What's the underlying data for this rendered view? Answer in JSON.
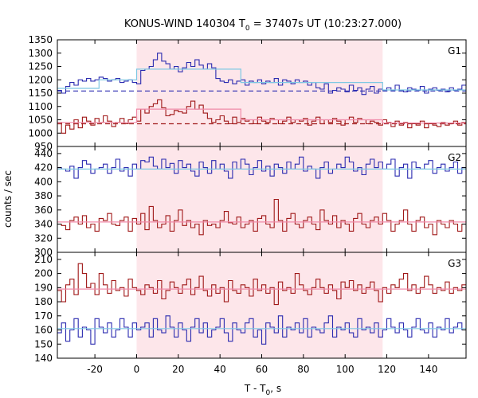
{
  "chart_data": {
    "type": "line",
    "title": "KONUS-WIND 140304 T",
    "title_sub": "0",
    "title_rest": " = 37407s UT (10:23:27.000)",
    "xlabel": "T - T",
    "xlabel_sub": "0",
    "xlabel_rest": ", s",
    "ylabel": "counts / sec",
    "xlim": [
      -38,
      158
    ],
    "xticks": [
      -20,
      0,
      20,
      40,
      60,
      80,
      100,
      120,
      140
    ],
    "highlight_interval": [
      0,
      118
    ],
    "colors": {
      "blue": "#2b2bb0",
      "red": "#a01818",
      "cyan": "#7ec8e3",
      "pink": "#f08aa8",
      "shade": "#fde6ea"
    },
    "panels": [
      {
        "label": "G1",
        "ylim": [
          950,
          1350
        ],
        "yticks": [
          950,
          1000,
          1050,
          1100,
          1150,
          1200,
          1250,
          1300,
          1350
        ],
        "series": [
          {
            "color": "blue",
            "x0": -38,
            "dx": 2,
            "values": [
              1160,
              1150,
              1175,
              1190,
              1180,
              1200,
              1195,
              1205,
              1195,
              1200,
              1210,
              1205,
              1195,
              1200,
              1205,
              1190,
              1195,
              1200,
              1190,
              1185,
              1235,
              1240,
              1250,
              1275,
              1300,
              1270,
              1260,
              1240,
              1250,
              1230,
              1245,
              1265,
              1250,
              1275,
              1255,
              1240,
              1260,
              1245,
              1205,
              1195,
              1190,
              1200,
              1185,
              1195,
              1200,
              1180,
              1195,
              1190,
              1200,
              1185,
              1195,
              1190,
              1205,
              1180,
              1200,
              1195,
              1185,
              1200,
              1190,
              1195,
              1180,
              1190,
              1170,
              1165,
              1185,
              1150,
              1160,
              1170,
              1165,
              1155,
              1180,
              1160,
              1170,
              1145,
              1165,
              1175,
              1150,
              1165,
              1160,
              1170,
              1160,
              1180,
              1160,
              1155,
              1170,
              1165,
              1160,
              1175,
              1150,
              1165,
              1170,
              1160,
              1165,
              1155,
              1170,
              1160,
              1165,
              1180
            ]
          },
          {
            "color": "red",
            "x0": -38,
            "dx": 2,
            "values": [
              1040,
              1000,
              1030,
              1015,
              1050,
              1020,
              1060,
              1045,
              1030,
              1055,
              1040,
              1065,
              1045,
              1025,
              1040,
              1055,
              1035,
              1050,
              1060,
              1045,
              1090,
              1075,
              1100,
              1110,
              1125,
              1095,
              1065,
              1070,
              1085,
              1080,
              1075,
              1100,
              1120,
              1090,
              1105,
              1075,
              1055,
              1040,
              1050,
              1065,
              1045,
              1035,
              1060,
              1040,
              1055,
              1045,
              1050,
              1035,
              1060,
              1045,
              1040,
              1055,
              1050,
              1035,
              1045,
              1060,
              1040,
              1050,
              1045,
              1055,
              1030,
              1045,
              1060,
              1035,
              1050,
              1040,
              1055,
              1045,
              1030,
              1050,
              1060,
              1040,
              1055,
              1050,
              1035,
              1045,
              1040,
              1030,
              1050,
              1040,
              1025,
              1045,
              1030,
              1040,
              1020,
              1035,
              1030,
              1045,
              1020,
              1035,
              1030,
              1025,
              1040,
              1030,
              1035,
              1045,
              1030,
              1040
            ]
          }
        ],
        "background_lines": [
          {
            "color": "blue",
            "style": "dashed",
            "segments": [
              [
                -38,
                118,
                1158
              ],
              [
                118,
                158,
                1158
              ]
            ]
          },
          {
            "color": "red",
            "style": "dashed",
            "segments": [
              [
                -38,
                158,
                1035
              ]
            ]
          }
        ],
        "mean_lines": [
          {
            "color": "cyan",
            "segments": [
              [
                -38,
                -18,
                1168
              ],
              [
                -18,
                0,
                1200
              ],
              [
                0,
                50,
                1240
              ],
              [
                50,
                118,
                1190
              ],
              [
                118,
                158,
                1162
              ]
            ]
          },
          {
            "color": "pink",
            "segments": [
              [
                -38,
                0,
                1040
              ],
              [
                0,
                50,
                1090
              ],
              [
                50,
                118,
                1050
              ],
              [
                118,
                158,
                1038
              ]
            ]
          }
        ]
      },
      {
        "label": "G2",
        "ylim": [
          300,
          450
        ],
        "yticks": [
          300,
          320,
          340,
          360,
          380,
          400,
          420,
          440
        ],
        "series": [
          {
            "color": "blue",
            "x0": -38,
            "dx": 2,
            "values": [
              420,
              418,
              415,
              422,
              405,
              420,
              430,
              425,
              412,
              418,
              420,
              425,
              412,
              420,
              432,
              415,
              420,
              408,
              425,
              418,
              430,
              428,
              435,
              422,
              418,
              432,
              420,
              426,
              412,
              430,
              420,
              425,
              415,
              408,
              428,
              420,
              412,
              430,
              418,
              425,
              415,
              405,
              428,
              418,
              432,
              425,
              410,
              420,
              430,
              415,
              422,
              408,
              425,
              420,
              412,
              428,
              418,
              425,
              435,
              415,
              422,
              418,
              405,
              420,
              428,
              412,
              418,
              425,
              420,
              435,
              428,
              415,
              420,
              410,
              425,
              432,
              420,
              428,
              418,
              425,
              432,
              408,
              420,
              425,
              405,
              428,
              420,
              418,
              425,
              430,
              412,
              420,
              425,
              415,
              420,
              428,
              412,
              420
            ]
          },
          {
            "color": "red",
            "x0": -38,
            "dx": 2,
            "values": [
              340,
              338,
              332,
              345,
              350,
              340,
              352,
              335,
              340,
              330,
              348,
              345,
              355,
              340,
              338,
              345,
              350,
              330,
              348,
              340,
              355,
              332,
              365,
              345,
              335,
              340,
              352,
              330,
              345,
              360,
              338,
              345,
              335,
              340,
              325,
              345,
              338,
              340,
              335,
              345,
              358,
              342,
              340,
              350,
              335,
              340,
              345,
              330,
              348,
              352,
              340,
              335,
              375,
              345,
              330,
              348,
              355,
              340,
              335,
              345,
              350,
              340,
              332,
              360,
              345,
              340,
              352,
              335,
              345,
              340,
              330,
              348,
              355,
              340,
              335,
              345,
              350,
              340,
              355,
              345,
              330,
              340,
              345,
              360,
              340,
              330,
              345,
              350,
              335,
              340,
              325,
              345,
              340,
              335,
              345,
              340,
              330,
              340
            ]
          }
        ],
        "background_lines": [],
        "mean_lines": [
          {
            "color": "cyan",
            "segments": [
              [
                -38,
                158,
                418
              ]
            ]
          },
          {
            "color": "pink",
            "segments": [
              [
                -38,
                158,
                343
              ]
            ]
          }
        ]
      },
      {
        "label": "G3",
        "ylim": [
          140,
          215
        ],
        "yticks": [
          140,
          150,
          160,
          170,
          180,
          190,
          200,
          210
        ],
        "series": [
          {
            "color": "blue",
            "x0": -38,
            "dx": 2,
            "values": [
              158,
              165,
              152,
              160,
              168,
              155,
              162,
              160,
              150,
              168,
              162,
              158,
              165,
              155,
              160,
              168,
              162,
              155,
              165,
              160,
              162,
              165,
              155,
              168,
              160,
              158,
              170,
              162,
              155,
              165,
              160,
              152,
              162,
              168,
              158,
              165,
              155,
              160,
              162,
              168,
              158,
              152,
              165,
              160,
              158,
              165,
              168,
              155,
              160,
              150,
              165,
              162,
              158,
              170,
              155,
              162,
              160,
              165,
              158,
              168,
              155,
              162,
              160,
              158,
              165,
              170,
              155,
              162,
              160,
              165,
              158,
              155,
              168,
              160,
              162,
              158,
              165,
              155,
              160,
              168,
              162,
              158,
              165,
              160,
              155,
              162,
              168,
              160,
              158,
              165,
              155,
              162,
              160,
              168,
              158,
              162,
              165,
              160
            ]
          },
          {
            "color": "red",
            "x0": -38,
            "dx": 2,
            "values": [
              188,
              180,
              192,
              196,
              185,
              207,
              200,
              190,
              193,
              185,
              200,
              192,
              186,
              195,
              188,
              190,
              184,
              196,
              190,
              188,
              185,
              192,
              190,
              186,
              195,
              182,
              188,
              194,
              190,
              186,
              192,
              196,
              185,
              190,
              198,
              188,
              184,
              192,
              186,
              190,
              180,
              195,
              188,
              186,
              192,
              190,
              184,
              196,
              188,
              192,
              186,
              190,
              178,
              194,
              188,
              190,
              186,
              200,
              192,
              188,
              185,
              190,
              196,
              190,
              186,
              192,
              188,
              182,
              194,
              190,
              195,
              188,
              192,
              186,
              190,
              194,
              188,
              180,
              190,
              186,
              192,
              190,
              196,
              200,
              188,
              192,
              186,
              190,
              198,
              192,
              186,
              190,
              188,
              194,
              186,
              190,
              188,
              192
            ]
          }
        ],
        "background_lines": [],
        "mean_lines": [
          {
            "color": "cyan",
            "segments": [
              [
                -38,
                158,
                161
              ]
            ]
          },
          {
            "color": "pink",
            "segments": [
              [
                -38,
                158,
                189
              ]
            ]
          }
        ]
      }
    ]
  }
}
